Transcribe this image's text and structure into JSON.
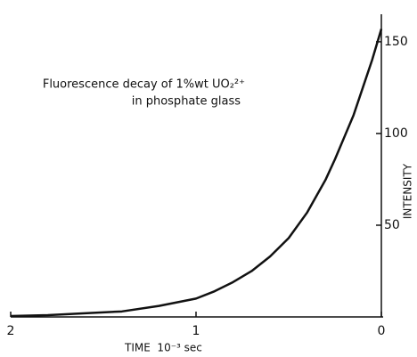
{
  "chart_data": {
    "type": "line",
    "title": "Fluorescence decay of 1%wt UO₂²⁺",
    "subtitle": "in phosphate glass",
    "x_label": "TIME  10⁻³ sec",
    "y_label": "INTENSITY",
    "x": [
      0,
      0.05,
      0.1,
      0.15,
      0.2,
      0.25,
      0.3,
      0.4,
      0.5,
      0.6,
      0.7,
      0.8,
      0.9,
      1.0,
      1.2,
      1.4,
      1.6,
      1.8,
      2.0
    ],
    "series": [
      {
        "name": "Intensity",
        "color": "#111111",
        "values": [
          157,
          140,
          125,
          110,
          98,
          86,
          75,
          57,
          43,
          33,
          25,
          19,
          14,
          10,
          6,
          3,
          2,
          1,
          0.5
        ]
      }
    ],
    "xlim": [
      2,
      0
    ],
    "xticks": [
      2,
      1,
      0
    ],
    "ylim": [
      0,
      165
    ],
    "yticks": [
      50,
      100,
      150
    ],
    "y_axis_side": "right",
    "grid": false
  }
}
